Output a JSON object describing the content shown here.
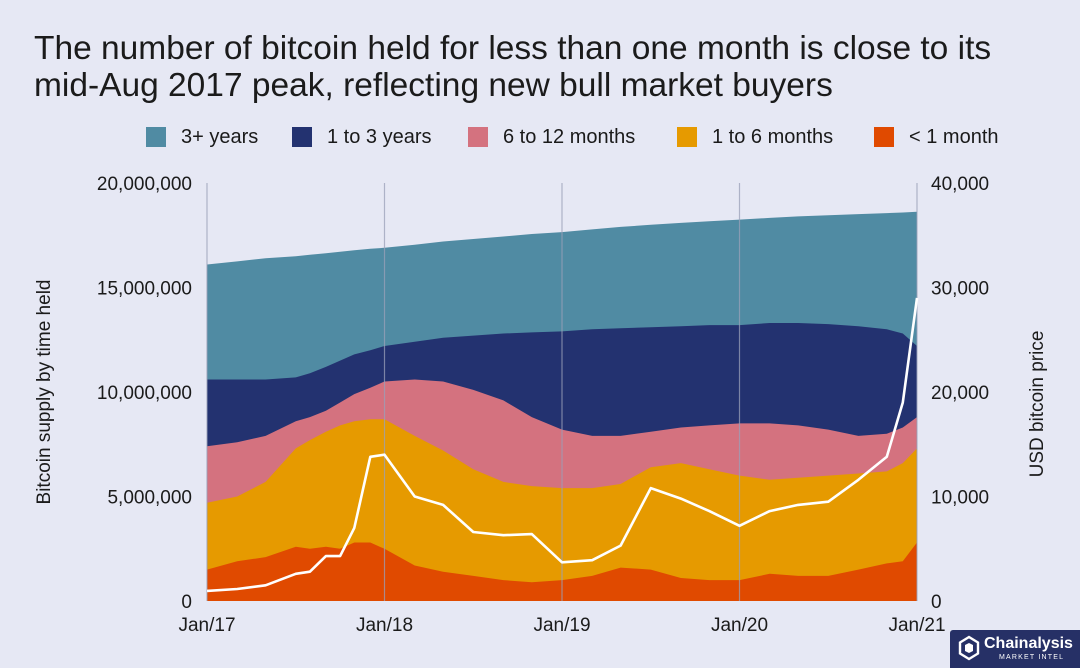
{
  "chart_data": {
    "type": "area",
    "title": "The number of bitcoin held for less than one month is close to its mid-Aug 2017 peak, reflecting new bull market buyers",
    "ylabel": "Bitcoin supply by time held",
    "y2label": "USD bitcoin price",
    "ylim": [
      0,
      20000000
    ],
    "y2lim": [
      0,
      40000
    ],
    "y_ticks": [
      "0",
      "5,000,000",
      "10,000,000",
      "15,000,000",
      "20,000,000"
    ],
    "y2_ticks": [
      "0",
      "10,000",
      "20,000",
      "30,000",
      "40,000"
    ],
    "x_ticks": [
      "Jan/17",
      "Jan/18",
      "Jan/19",
      "Jan/20",
      "Jan/21"
    ],
    "grid": "vertical",
    "legend_position": "top",
    "x": [
      2017.0,
      2017.17,
      2017.33,
      2017.5,
      2017.58,
      2017.67,
      2017.75,
      2017.83,
      2017.92,
      2018.0,
      2018.17,
      2018.33,
      2018.5,
      2018.67,
      2018.83,
      2019.0,
      2019.17,
      2019.33,
      2019.5,
      2019.67,
      2019.83,
      2020.0,
      2020.17,
      2020.33,
      2020.5,
      2020.67,
      2020.83,
      2020.92,
      2021.0
    ],
    "series": [
      {
        "name": "< 1 month",
        "type": "area",
        "color": "#e04a00",
        "values": [
          1500000,
          1900000,
          2100000,
          2600000,
          2500000,
          2600000,
          2500000,
          2800000,
          2800000,
          2500000,
          1700000,
          1400000,
          1200000,
          1000000,
          900000,
          1000000,
          1200000,
          1600000,
          1500000,
          1100000,
          1000000,
          1000000,
          1300000,
          1200000,
          1200000,
          1500000,
          1800000,
          1900000,
          2800000
        ]
      },
      {
        "name": "1 to 6 months",
        "type": "area",
        "color": "#e69a00",
        "values": [
          4700000,
          5000000,
          5700000,
          7300000,
          7700000,
          8100000,
          8400000,
          8600000,
          8700000,
          8700000,
          7900000,
          7200000,
          6300000,
          5700000,
          5500000,
          5400000,
          5400000,
          5600000,
          6400000,
          6600000,
          6300000,
          6000000,
          5800000,
          5900000,
          6000000,
          6100000,
          6200000,
          6600000,
          7300000
        ]
      },
      {
        "name": "6 to 12 months",
        "type": "area",
        "color": "#d4727f",
        "values": [
          7400000,
          7600000,
          7900000,
          8600000,
          8800000,
          9100000,
          9500000,
          9900000,
          10200000,
          10500000,
          10600000,
          10500000,
          10100000,
          9600000,
          8800000,
          8200000,
          7900000,
          7900000,
          8100000,
          8300000,
          8400000,
          8500000,
          8500000,
          8400000,
          8200000,
          7900000,
          8000000,
          8300000,
          8800000
        ]
      },
      {
        "name": "1 to 3 years",
        "type": "area",
        "color": "#233270",
        "values": [
          10600000,
          10600000,
          10600000,
          10700000,
          10900000,
          11200000,
          11500000,
          11800000,
          12000000,
          12200000,
          12400000,
          12600000,
          12700000,
          12800000,
          12850000,
          12900000,
          13000000,
          13050000,
          13100000,
          13150000,
          13200000,
          13200000,
          13300000,
          13300000,
          13250000,
          13150000,
          13000000,
          12800000,
          12200000
        ]
      },
      {
        "name": "3+ years",
        "type": "area",
        "color": "#508ba3",
        "values": [
          16100000,
          16250000,
          16400000,
          16500000,
          16570000,
          16640000,
          16710000,
          16780000,
          16850000,
          16900000,
          17050000,
          17200000,
          17320000,
          17440000,
          17560000,
          17650000,
          17780000,
          17900000,
          18000000,
          18090000,
          18170000,
          18250000,
          18330000,
          18400000,
          18460000,
          18510000,
          18560000,
          18590000,
          18620000
        ]
      },
      {
        "name": "USD bitcoin price",
        "type": "line",
        "axis": "right",
        "color": "#ffffff",
        "values": [
          970,
          1150,
          1500,
          2600,
          2800,
          4300,
          4300,
          7000,
          13800,
          14000,
          10000,
          9200,
          6600,
          6300,
          6400,
          3700,
          3900,
          5300,
          10800,
          9800,
          8600,
          7200,
          8600,
          9200,
          9500,
          11600,
          13800,
          19000,
          29000
        ]
      }
    ]
  },
  "logo": {
    "name": "Chainalysis",
    "sub": "MARKET INTEL"
  }
}
